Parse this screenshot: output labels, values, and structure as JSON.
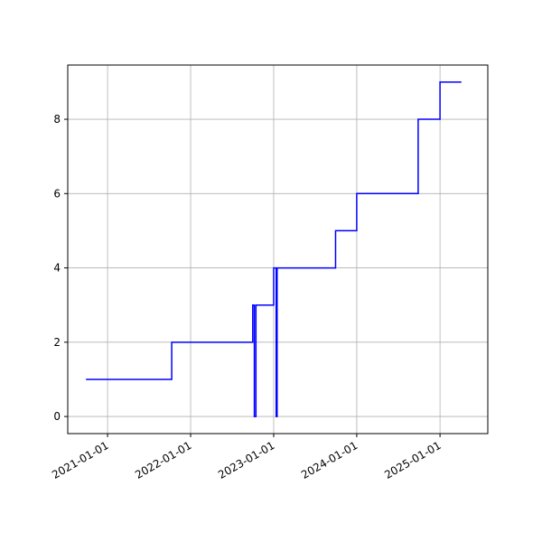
{
  "chart_data": {
    "type": "step",
    "x": [
      "2020-09-28",
      "2021-10-10",
      "2022-10-01",
      "2022-10-08",
      "2022-10-15",
      "2023-01-01",
      "2023-01-12",
      "2023-01-16",
      "2023-09-30",
      "2024-01-01",
      "2024-09-27",
      "2025-01-01",
      "2025-04-05"
    ],
    "series": [
      {
        "color": "#0000ff",
        "values": [
          1,
          2,
          3,
          0,
          3,
          4,
          0,
          4,
          5,
          6,
          8,
          9,
          9
        ]
      }
    ],
    "xlim": [
      "2020-07-10",
      "2025-07-30"
    ],
    "xticks": [
      "2021-01-01",
      "2022-01-01",
      "2023-01-01",
      "2024-01-01",
      "2025-01-01"
    ],
    "ylim": [
      -0.46,
      9.46
    ],
    "yticks": [
      0,
      2,
      4,
      6,
      8
    ],
    "grid": true
  }
}
